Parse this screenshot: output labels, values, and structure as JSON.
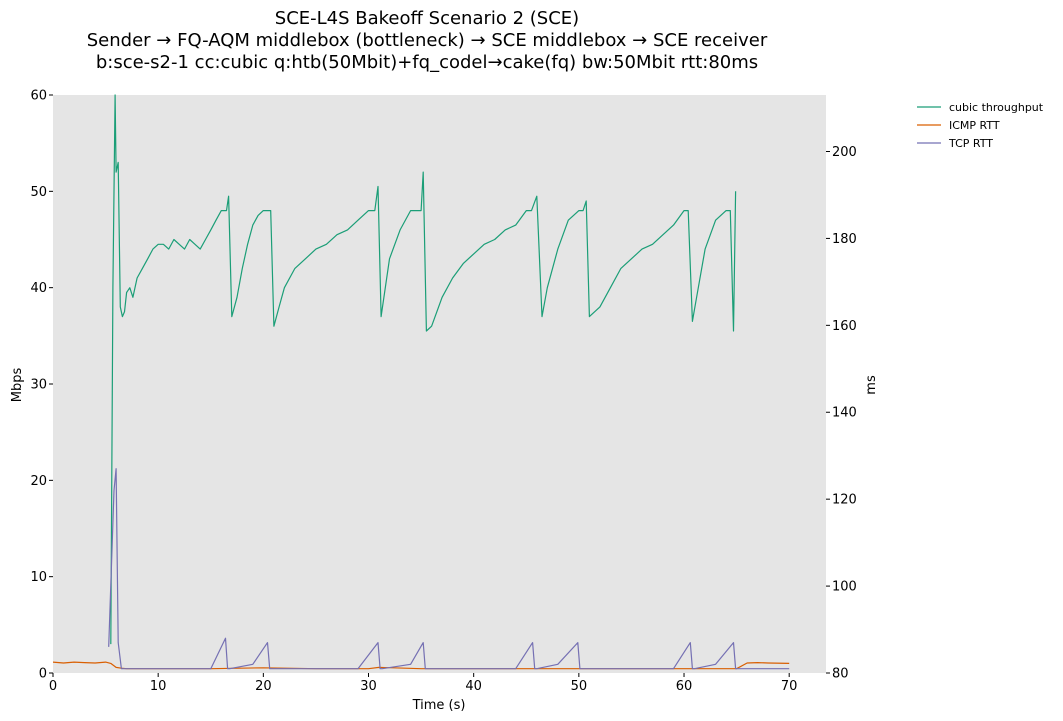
{
  "chart_data": {
    "type": "line",
    "title": [
      "SCE-L4S Bakeoff Scenario 2 (SCE)",
      "Sender → FQ-AQM middlebox (bottleneck) → SCE middlebox → SCE receiver",
      "b:sce-s2-1 cc:cubic q:htb(50Mbit)+fq_codel→cake(fq) bw:50Mbit rtt:80ms"
    ],
    "xlabel": "Time (s)",
    "ylabel": "Mbps",
    "y2label": "ms",
    "xlim": [
      0,
      73.5
    ],
    "ylim": [
      0,
      60
    ],
    "y2lim": [
      80,
      213
    ],
    "xticks": [
      0,
      10,
      20,
      30,
      40,
      50,
      60,
      70
    ],
    "yticks": [
      0,
      10,
      20,
      30,
      40,
      50,
      60
    ],
    "y2ticks": [
      80,
      100,
      120,
      140,
      160,
      180,
      200
    ],
    "grid": false,
    "legend": "outside-top-right",
    "series": [
      {
        "name": "cubic throughput",
        "axis": "left",
        "color": "#1b9e77",
        "x": [
          5.5,
          5.7,
          5.9,
          6.0,
          6.2,
          6.4,
          6.6,
          6.8,
          7.0,
          7.3,
          7.6,
          8.0,
          8.5,
          9.0,
          9.5,
          10.0,
          10.5,
          11.0,
          11.5,
          12.0,
          12.5,
          13.0,
          13.5,
          14.0,
          14.5,
          15.0,
          15.5,
          16.0,
          16.3,
          16.5,
          16.7,
          17.0,
          17.5,
          18.0,
          18.5,
          19.0,
          19.5,
          20.0,
          20.4,
          20.7,
          21.0,
          21.5,
          22.0,
          23.0,
          24.0,
          25.0,
          26.0,
          27.0,
          28.0,
          29.0,
          30.0,
          30.6,
          30.9,
          31.2,
          31.6,
          32.0,
          33.0,
          34.0,
          35.0,
          35.2,
          35.5,
          36.0,
          37.0,
          38.0,
          39.0,
          40.0,
          41.0,
          42.0,
          43.0,
          44.0,
          45.0,
          45.5,
          46.0,
          46.5,
          47.0,
          48.0,
          49.0,
          50.0,
          50.4,
          50.7,
          51.0,
          52.0,
          53.0,
          54.0,
          55.0,
          56.0,
          57.0,
          58.0,
          59.0,
          60.0,
          60.4,
          60.8,
          61.2,
          62.0,
          63.0,
          64.0,
          64.4,
          64.7,
          64.9
        ],
        "y": [
          3.0,
          40.0,
          60.0,
          52.0,
          53.0,
          38.0,
          37.0,
          37.5,
          39.5,
          40.0,
          39.0,
          41.0,
          42.0,
          43.0,
          44.0,
          44.5,
          44.5,
          44.0,
          45.0,
          44.5,
          44.0,
          45.0,
          44.5,
          44.0,
          45.0,
          46.0,
          47.0,
          48.0,
          48.0,
          48.0,
          49.5,
          37.0,
          39.0,
          42.0,
          44.5,
          46.5,
          47.5,
          48.0,
          48.0,
          48.0,
          36.0,
          38.0,
          40.0,
          42.0,
          43.0,
          44.0,
          44.5,
          45.5,
          46.0,
          47.0,
          48.0,
          48.0,
          50.5,
          37.0,
          40.0,
          43.0,
          46.0,
          48.0,
          48.0,
          52.0,
          35.5,
          36.0,
          39.0,
          41.0,
          42.5,
          43.5,
          44.5,
          45.0,
          46.0,
          46.5,
          48.0,
          48.0,
          49.5,
          37.0,
          40.0,
          44.0,
          47.0,
          48.0,
          48.0,
          49.0,
          37.0,
          38.0,
          40.0,
          42.0,
          43.0,
          44.0,
          44.5,
          45.5,
          46.5,
          48.0,
          48.0,
          36.5,
          39.0,
          44.0,
          47.0,
          48.0,
          48.0,
          35.5,
          50.0
        ]
      },
      {
        "name": "ICMP RTT",
        "axis": "right",
        "color": "#d95f02",
        "x": [
          0,
          1,
          2,
          3,
          4,
          5,
          5.5,
          6.0,
          6.5,
          7.0,
          10.0,
          15.0,
          20.0,
          25.0,
          30.0,
          31.0,
          35.0,
          40.0,
          45.0,
          50.0,
          55.0,
          60.0,
          64.0,
          65.0,
          66.0,
          67.0,
          68.0,
          70.0
        ],
        "y": [
          82.5,
          82.3,
          82.5,
          82.4,
          82.3,
          82.5,
          82.2,
          81.3,
          81.1,
          81.0,
          81.0,
          81.0,
          81.2,
          81.0,
          81.0,
          81.3,
          81.0,
          81.0,
          81.0,
          81.0,
          81.0,
          81.0,
          81.0,
          81.0,
          82.3,
          82.4,
          82.3,
          82.2
        ]
      },
      {
        "name": "TCP RTT",
        "axis": "right",
        "color": "#7570b3",
        "x": [
          5.3,
          5.8,
          6.0,
          6.2,
          6.5,
          10.0,
          15.0,
          16.4,
          16.6,
          16.8,
          19.0,
          20.4,
          20.6,
          21.0,
          29.0,
          30.9,
          31.1,
          31.3,
          34.0,
          35.2,
          35.4,
          36.0,
          44.0,
          45.6,
          45.8,
          46.0,
          48.0,
          49.9,
          50.1,
          50.4,
          59.0,
          60.6,
          60.8,
          61.0,
          63.0,
          64.7,
          64.9,
          65.1,
          70.0
        ],
        "y": [
          86.0,
          122.0,
          127.0,
          87.0,
          81.0,
          81.0,
          81.0,
          88.0,
          81.0,
          81.0,
          82.0,
          87.0,
          81.0,
          81.0,
          81.0,
          87.0,
          81.0,
          81.0,
          82.0,
          87.0,
          81.0,
          81.0,
          81.0,
          87.0,
          81.0,
          81.0,
          82.0,
          87.0,
          81.0,
          81.0,
          81.0,
          87.0,
          81.0,
          81.0,
          82.0,
          87.0,
          81.0,
          81.0,
          81.0
        ]
      }
    ]
  }
}
